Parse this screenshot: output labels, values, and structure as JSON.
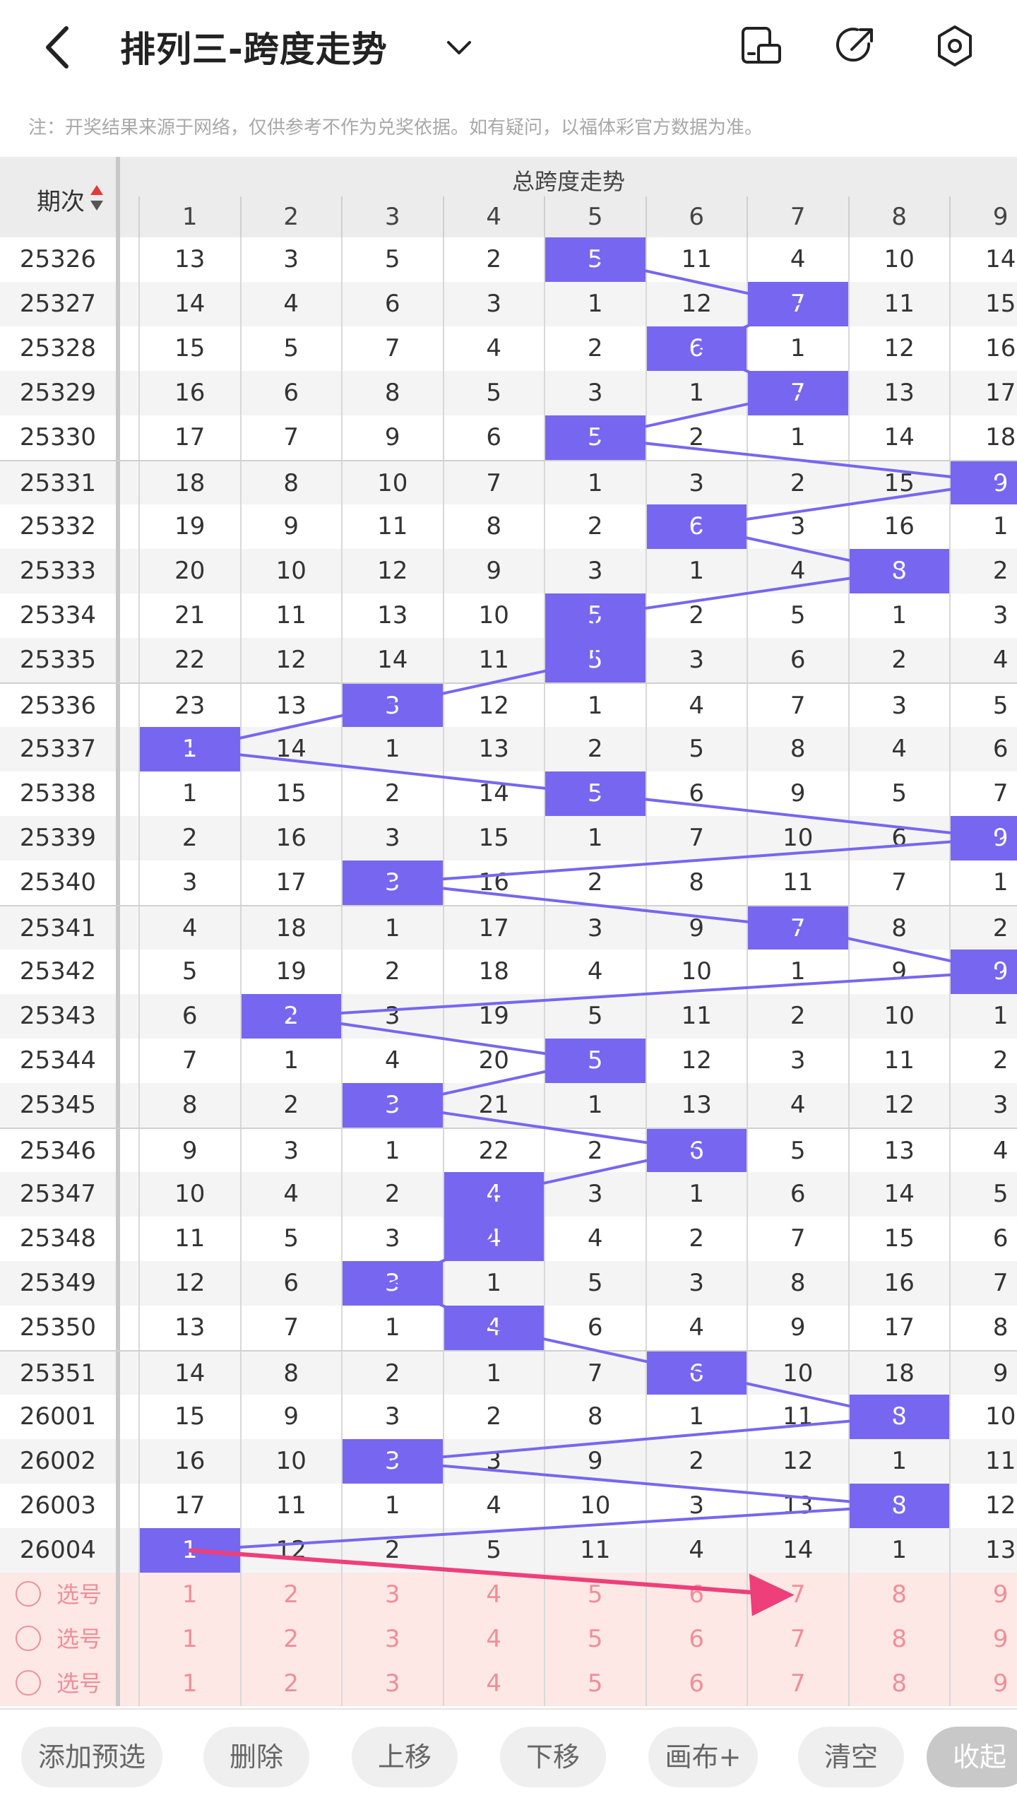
{
  "header": {
    "title": "排列三-跨度走势",
    "icons": [
      "back-icon",
      "chevron-down-icon",
      "layout-icon",
      "share-icon",
      "settings-icon"
    ]
  },
  "notice": "注：开奖结果来源于网络，仅供参考不作为兑奖依据。如有疑问，以福体彩官方数据为准。",
  "table": {
    "period_header": "期次",
    "group_title": "总跨度走势",
    "columns": [
      "1",
      "2",
      "3",
      "4",
      "5",
      "6",
      "7",
      "8",
      "9"
    ],
    "rows": [
      {
        "period": "25326",
        "values": [
          "13",
          "3",
          "5",
          "2",
          "5",
          "11",
          "4",
          "10",
          "14"
        ],
        "hit": 5
      },
      {
        "period": "25327",
        "values": [
          "14",
          "4",
          "6",
          "3",
          "1",
          "12",
          "7",
          "11",
          "15"
        ],
        "hit": 7
      },
      {
        "period": "25328",
        "values": [
          "15",
          "5",
          "7",
          "4",
          "2",
          "6",
          "1",
          "12",
          "16"
        ],
        "hit": 6
      },
      {
        "period": "25329",
        "values": [
          "16",
          "6",
          "8",
          "5",
          "3",
          "1",
          "7",
          "13",
          "17"
        ],
        "hit": 7
      },
      {
        "period": "25330",
        "values": [
          "17",
          "7",
          "9",
          "6",
          "5",
          "2",
          "1",
          "14",
          "18"
        ],
        "hit": 5
      },
      {
        "period": "25331",
        "values": [
          "18",
          "8",
          "10",
          "7",
          "1",
          "3",
          "2",
          "15",
          "9"
        ],
        "hit": 9
      },
      {
        "period": "25332",
        "values": [
          "19",
          "9",
          "11",
          "8",
          "2",
          "6",
          "3",
          "16",
          "1"
        ],
        "hit": 6
      },
      {
        "period": "25333",
        "values": [
          "20",
          "10",
          "12",
          "9",
          "3",
          "1",
          "4",
          "8",
          "2"
        ],
        "hit": 8
      },
      {
        "period": "25334",
        "values": [
          "21",
          "11",
          "13",
          "10",
          "5",
          "2",
          "5",
          "1",
          "3"
        ],
        "hit": 5
      },
      {
        "period": "25335",
        "values": [
          "22",
          "12",
          "14",
          "11",
          "5",
          "3",
          "6",
          "2",
          "4"
        ],
        "hit": 5
      },
      {
        "period": "25336",
        "values": [
          "23",
          "13",
          "3",
          "12",
          "1",
          "4",
          "7",
          "3",
          "5"
        ],
        "hit": 3
      },
      {
        "period": "25337",
        "values": [
          "1",
          "14",
          "1",
          "13",
          "2",
          "5",
          "8",
          "4",
          "6"
        ],
        "hit": 1
      },
      {
        "period": "25338",
        "values": [
          "1",
          "15",
          "2",
          "14",
          "5",
          "6",
          "9",
          "5",
          "7"
        ],
        "hit": 5
      },
      {
        "period": "25339",
        "values": [
          "2",
          "16",
          "3",
          "15",
          "1",
          "7",
          "10",
          "6",
          "9"
        ],
        "hit": 9
      },
      {
        "period": "25340",
        "values": [
          "3",
          "17",
          "3",
          "16",
          "2",
          "8",
          "11",
          "7",
          "1"
        ],
        "hit": 3
      },
      {
        "period": "25341",
        "values": [
          "4",
          "18",
          "1",
          "17",
          "3",
          "9",
          "7",
          "8",
          "2"
        ],
        "hit": 7
      },
      {
        "period": "25342",
        "values": [
          "5",
          "19",
          "2",
          "18",
          "4",
          "10",
          "1",
          "9",
          "9"
        ],
        "hit": 9
      },
      {
        "period": "25343",
        "values": [
          "6",
          "2",
          "3",
          "19",
          "5",
          "11",
          "2",
          "10",
          "1"
        ],
        "hit": 2
      },
      {
        "period": "25344",
        "values": [
          "7",
          "1",
          "4",
          "20",
          "5",
          "12",
          "3",
          "11",
          "2"
        ],
        "hit": 5
      },
      {
        "period": "25345",
        "values": [
          "8",
          "2",
          "3",
          "21",
          "1",
          "13",
          "4",
          "12",
          "3"
        ],
        "hit": 3
      },
      {
        "period": "25346",
        "values": [
          "9",
          "3",
          "1",
          "22",
          "2",
          "6",
          "5",
          "13",
          "4"
        ],
        "hit": 6
      },
      {
        "period": "25347",
        "values": [
          "10",
          "4",
          "2",
          "4",
          "3",
          "1",
          "6",
          "14",
          "5"
        ],
        "hit": 4
      },
      {
        "period": "25348",
        "values": [
          "11",
          "5",
          "3",
          "4",
          "4",
          "2",
          "7",
          "15",
          "6"
        ],
        "hit": 4
      },
      {
        "period": "25349",
        "values": [
          "12",
          "6",
          "3",
          "1",
          "5",
          "3",
          "8",
          "16",
          "7"
        ],
        "hit": 3
      },
      {
        "period": "25350",
        "values": [
          "13",
          "7",
          "1",
          "4",
          "6",
          "4",
          "9",
          "17",
          "8"
        ],
        "hit": 4
      },
      {
        "period": "25351",
        "values": [
          "14",
          "8",
          "2",
          "1",
          "7",
          "6",
          "10",
          "18",
          "9"
        ],
        "hit": 6
      },
      {
        "period": "26001",
        "values": [
          "15",
          "9",
          "3",
          "2",
          "8",
          "1",
          "11",
          "8",
          "10"
        ],
        "hit": 8
      },
      {
        "period": "26002",
        "values": [
          "16",
          "10",
          "3",
          "3",
          "9",
          "2",
          "12",
          "1",
          "11"
        ],
        "hit": 3
      },
      {
        "period": "26003",
        "values": [
          "17",
          "11",
          "1",
          "4",
          "10",
          "3",
          "13",
          "8",
          "12"
        ],
        "hit": 8
      },
      {
        "period": "26004",
        "values": [
          "1",
          "12",
          "2",
          "5",
          "11",
          "4",
          "14",
          "1",
          "13"
        ],
        "hit": 1
      }
    ],
    "select_rows": [
      {
        "label": "选号",
        "values": [
          "1",
          "2",
          "3",
          "4",
          "5",
          "6",
          "7",
          "8",
          "9"
        ]
      },
      {
        "label": "选号",
        "values": [
          "1",
          "2",
          "3",
          "4",
          "5",
          "6",
          "7",
          "8",
          "9"
        ]
      },
      {
        "label": "选号",
        "values": [
          "1",
          "2",
          "3",
          "4",
          "5",
          "6",
          "7",
          "8",
          "9"
        ]
      }
    ]
  },
  "colors": {
    "hit": "#7766f0",
    "line": "#7766f0",
    "arrow": "#ee3f7a",
    "select_text": "#ee8f98",
    "select_bg": "#fde8e6"
  },
  "bottom_bar": {
    "buttons": [
      "添加预选",
      "删除",
      "上移",
      "下移",
      "画布+",
      "清空",
      "收起"
    ]
  }
}
